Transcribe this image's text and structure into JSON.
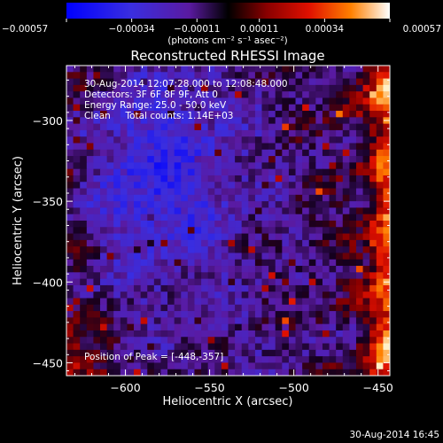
{
  "chart_data": {
    "type": "heatmap",
    "title": "Reconstructed RHESSI Image",
    "xlabel": "Heliocentric X (arcsec)",
    "ylabel": "Heliocentric Y (arcsec)",
    "xlim": [
      -635,
      -443
    ],
    "ylim": [
      -458,
      -266
    ],
    "x_ticks": [
      -600,
      -550,
      -500,
      -450
    ],
    "y_ticks": [
      -450,
      -400,
      -350,
      -300
    ],
    "x_tick_labels": [
      "−600",
      "−550",
      "−500",
      "−450"
    ],
    "y_tick_labels": [
      "−450",
      "−400",
      "−350",
      "−300"
    ],
    "annotations": [
      "30-Aug-2014 12:07:28.000 to 12:08:48.000",
      "Detectors: 3F 6F 8F 9F, Att 0",
      "Energy Range: 25.0 - 50.0 keV",
      "Clean     Total counts: 1.14E+03"
    ],
    "peak_label": "Position of Peak = [-448,-357]",
    "peak_position": [
      -448,
      -357
    ],
    "colorbar": {
      "vmin": -0.00057,
      "vmax": 0.00057,
      "tick_values": [
        -0.00057,
        -0.00034,
        -0.00011,
        0.00011,
        0.00034,
        0.00057
      ],
      "tick_labels": [
        "−0.00057",
        "−0.00034",
        "−0.00011",
        "0.00011",
        "0.00034",
        "0.00057"
      ],
      "unit_label": "(photons cm⁻² s⁻¹ asec⁻²)",
      "colors": [
        "#0000ff",
        "#4a2ad8",
        "#5a1aa0",
        "#000000",
        "#8a0000",
        "#e01000",
        "#ff8000",
        "#ffffff"
      ]
    },
    "grid": false,
    "image_description_values": {
      "center_region": "negative (blue/purple)",
      "left_bottom_corner": "positive (red/orange)",
      "right_edge": "strong positive (orange/yellow)"
    }
  },
  "footer": {
    "timestamp": "30-Aug-2014 16:45"
  }
}
